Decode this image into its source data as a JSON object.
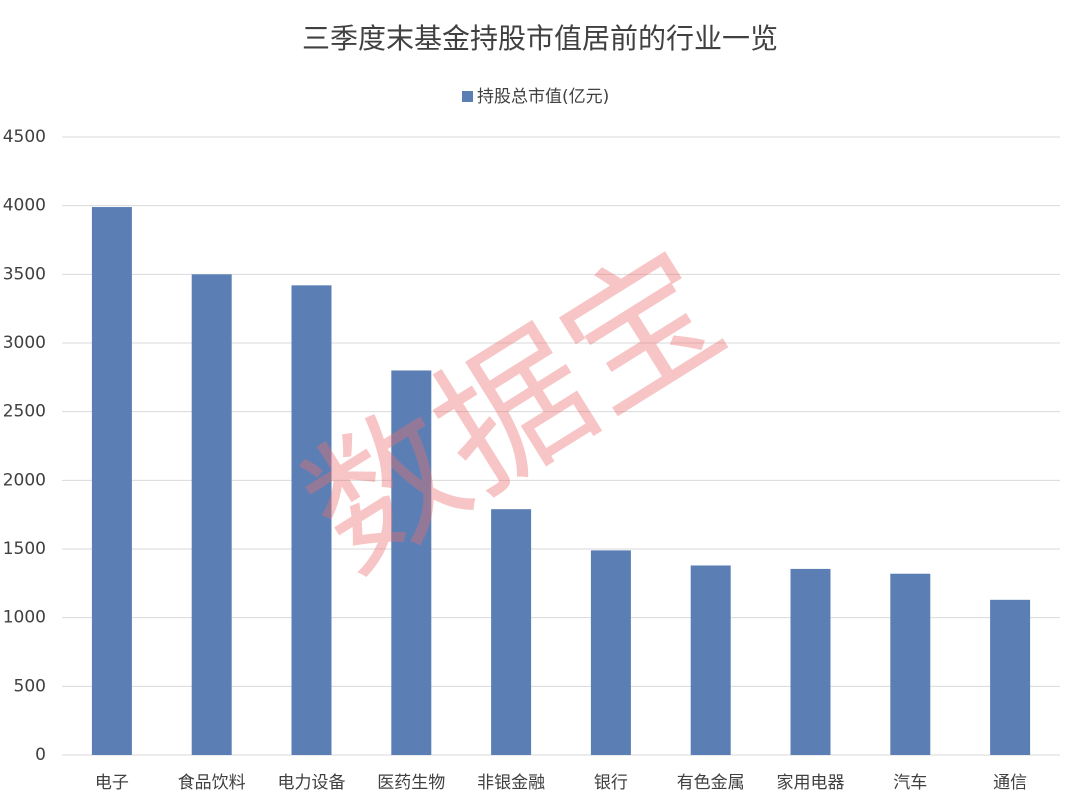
{
  "chart_data": {
    "type": "bar",
    "title": "三季度末基金持股市值居前的行业一览",
    "categories": [
      "电子",
      "食品饮料",
      "电力设备",
      "医药生物",
      "非银金融",
      "银行",
      "有色金属",
      "家用电器",
      "汽车",
      "通信"
    ],
    "series": [
      {
        "name": "持股总市值(亿元)",
        "color": "#5b7fb5",
        "values": [
          3990,
          3500,
          3420,
          2800,
          1790,
          1490,
          1380,
          1355,
          1320,
          1130
        ]
      }
    ],
    "ylim": [
      0,
      4500
    ],
    "yticks": [
      0,
      500,
      1000,
      1500,
      2000,
      2500,
      3000,
      3500,
      4000,
      4500
    ],
    "grid": true,
    "legend": "top",
    "watermark": "数据宝"
  }
}
